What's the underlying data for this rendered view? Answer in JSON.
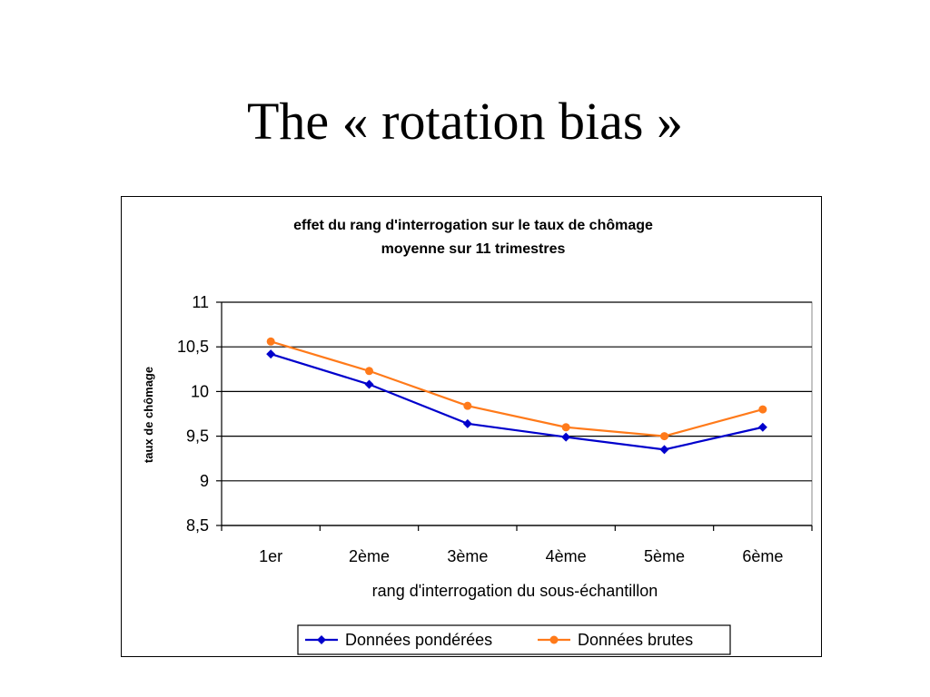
{
  "slide": {
    "title": "The « rotation bias »"
  },
  "colors": {
    "series_1": "#0000cc",
    "series_2": "#ff7a1a",
    "gridline": "#000000",
    "plot_background": "#ffffff"
  },
  "chart_data": {
    "type": "line",
    "title": "effet du rang d'interrogation sur le taux de chômage",
    "subtitle": "moyenne sur 11 trimestres",
    "xlabel": "rang d'interrogation du sous-échantillon",
    "ylabel": "taux de chômage",
    "categories": [
      "1er",
      "2ème",
      "3ème",
      "4ème",
      "5ème",
      "6ème"
    ],
    "series": [
      {
        "name": "Données pondérées",
        "marker": "diamond",
        "values": [
          10.42,
          10.08,
          9.64,
          9.49,
          9.35,
          9.6
        ]
      },
      {
        "name": "Données brutes",
        "marker": "circle",
        "values": [
          10.56,
          10.23,
          9.84,
          9.6,
          9.5,
          9.8
        ]
      }
    ],
    "ylim": [
      8.5,
      11
    ],
    "yticks": [
      8.5,
      9,
      9.5,
      10,
      10.5,
      11
    ],
    "ytick_labels": [
      "8,5",
      "9",
      "9,5",
      "10",
      "10,5",
      "11"
    ],
    "grid": "horizontal",
    "legend_position": "bottom"
  }
}
